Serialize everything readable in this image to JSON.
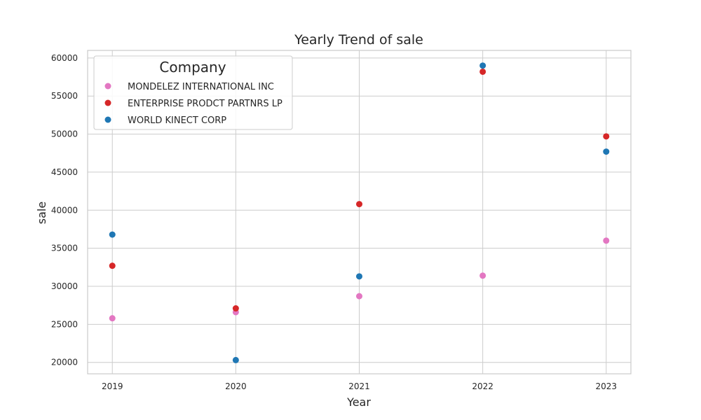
{
  "chart_data": {
    "type": "scatter",
    "title": "Yearly Trend of sale",
    "xlabel": "Year",
    "ylabel": "sale",
    "x": [
      2019,
      2020,
      2021,
      2022,
      2023
    ],
    "x_tick_labels": [
      "2019",
      "2020",
      "2021",
      "2022",
      "2023"
    ],
    "xlim": [
      2018.8,
      2023.2
    ],
    "ylim": [
      18500,
      61000
    ],
    "y_ticks": [
      20000,
      25000,
      30000,
      35000,
      40000,
      45000,
      50000,
      55000,
      60000
    ],
    "y_tick_labels": [
      "20000",
      "25000",
      "30000",
      "35000",
      "40000",
      "45000",
      "50000",
      "55000",
      "60000"
    ],
    "grid": true,
    "legend": {
      "title": "Company",
      "placement": "upper-left"
    },
    "series": [
      {
        "name": "MONDELEZ INTERNATIONAL INC",
        "color": "#e377c2",
        "values": [
          25800,
          26600,
          28700,
          31400,
          36000
        ]
      },
      {
        "name": "ENTERPRISE PRODCT PARTNRS LP",
        "color": "#d62728",
        "values": [
          32700,
          27100,
          40800,
          58200,
          49700
        ]
      },
      {
        "name": "WORLD KINECT CORP",
        "color": "#1f77b4",
        "values": [
          36800,
          20300,
          31300,
          59000,
          47700
        ]
      }
    ]
  }
}
